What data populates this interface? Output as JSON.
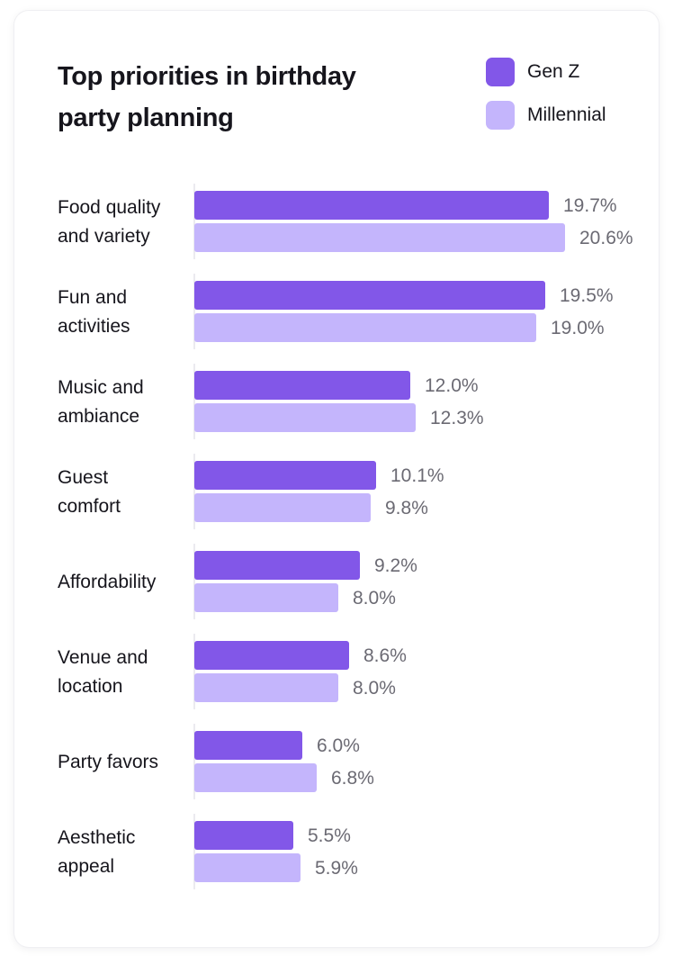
{
  "chart_data": {
    "type": "bar",
    "orientation": "horizontal",
    "title": "Top priorities in birthday party planning",
    "categories": [
      [
        "Food quality",
        "and variety"
      ],
      [
        "Fun and",
        "activities"
      ],
      [
        "Music and",
        "ambiance"
      ],
      [
        "Guest",
        "comfort"
      ],
      [
        "Affordability"
      ],
      [
        "Venue and",
        "location"
      ],
      [
        "Party favors"
      ],
      [
        "Aesthetic",
        "appeal"
      ]
    ],
    "series": [
      {
        "name": "Gen Z",
        "color": "#8257e8",
        "values": [
          19.7,
          19.5,
          12.0,
          10.1,
          9.2,
          8.6,
          6.0,
          5.5
        ],
        "labels": [
          "19.7%",
          "19.5%",
          "12.0%",
          "10.1%",
          "9.2%",
          "8.6%",
          "6.0%",
          "5.5%"
        ]
      },
      {
        "name": "Millennial",
        "color": "#c4b5fc",
        "values": [
          20.6,
          19.0,
          12.3,
          9.8,
          8.0,
          8.0,
          6.8,
          5.9
        ],
        "labels": [
          "20.6%",
          "19.0%",
          "12.3%",
          "9.8%",
          "8.0%",
          "8.0%",
          "6.8%",
          "5.9%"
        ]
      }
    ],
    "xlim": [
      0,
      20.6
    ],
    "legend": "top-right",
    "grid": false
  }
}
